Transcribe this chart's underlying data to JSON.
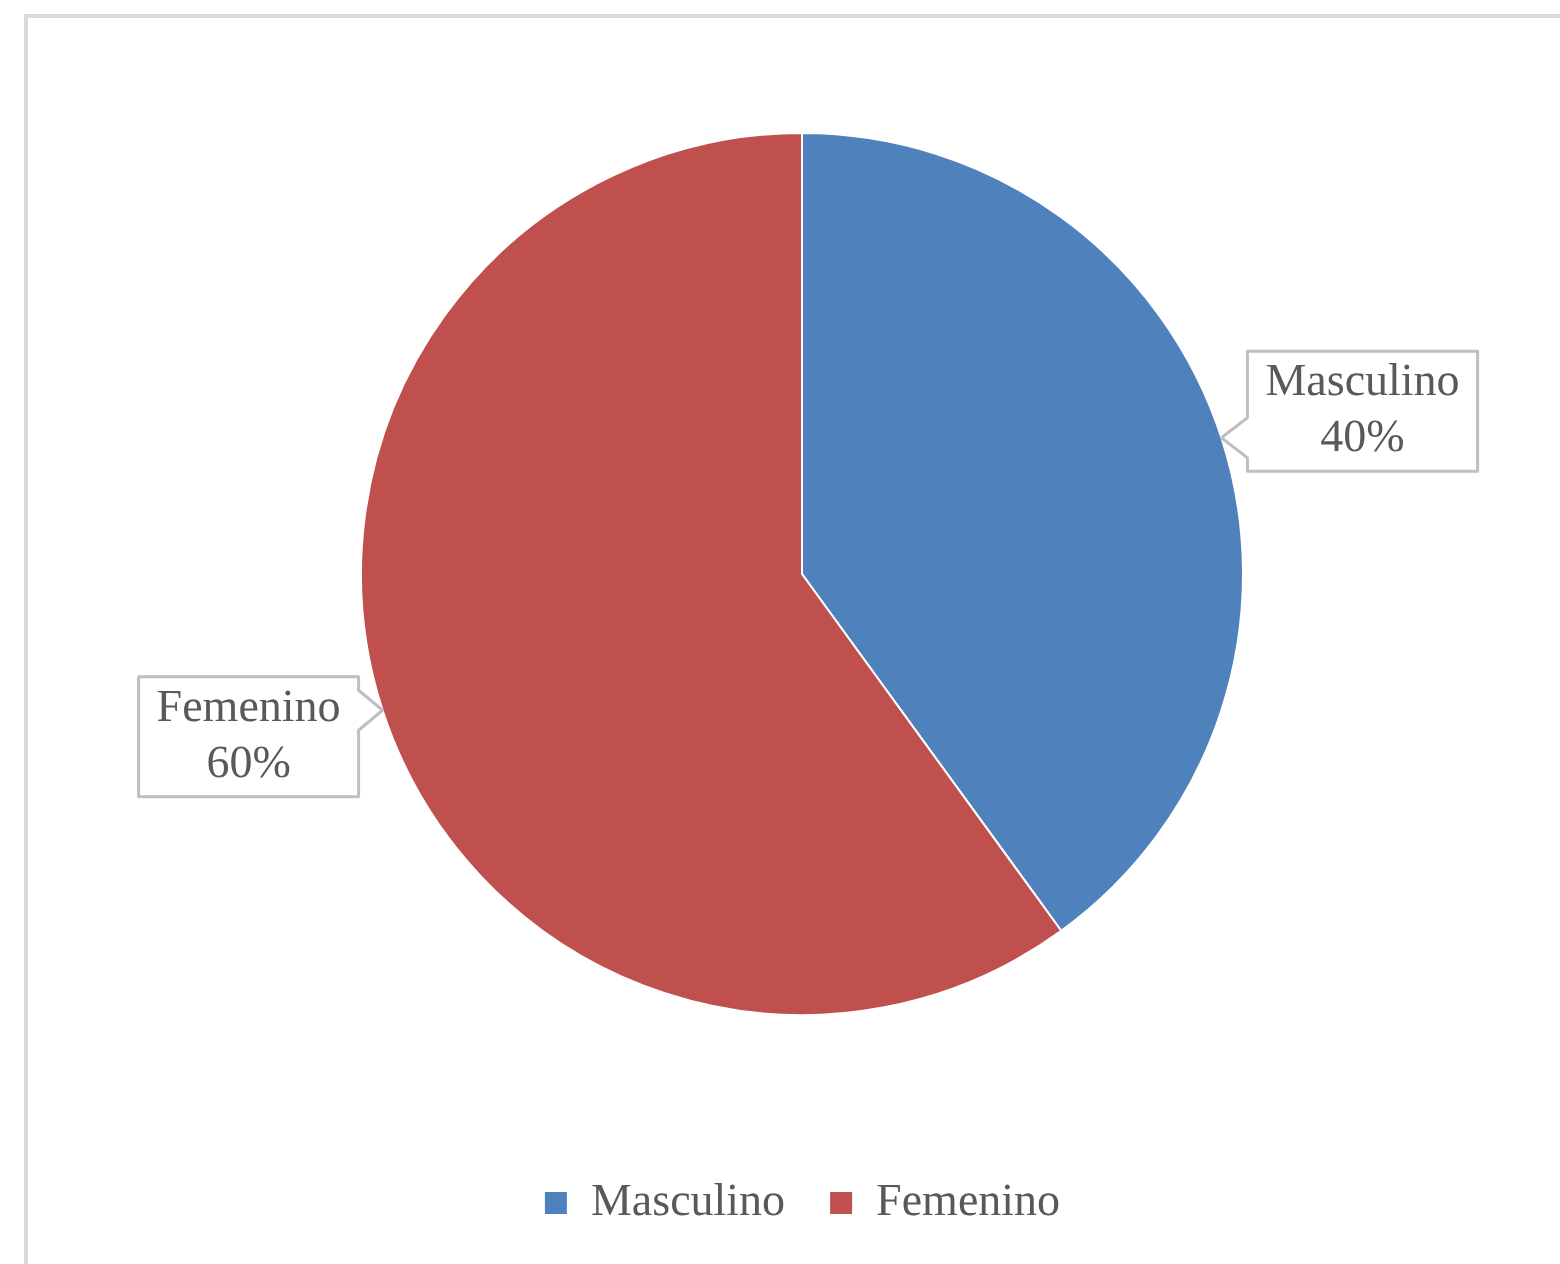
{
  "chart_data": {
    "type": "pie",
    "categories": [
      "Masculino",
      "Femenino"
    ],
    "values": [
      40,
      60
    ],
    "colors": [
      "#4f81bd",
      "#c0504d"
    ],
    "value_labels": [
      "40%",
      "60%"
    ],
    "legend": "bottom"
  }
}
